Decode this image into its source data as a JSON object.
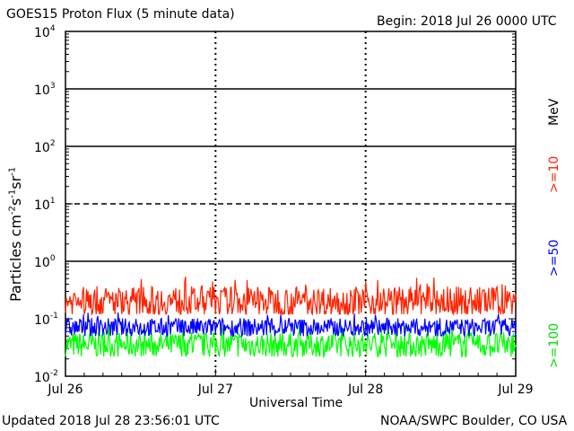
{
  "header": {
    "title": "GOES15 Proton Flux (5 minute data)",
    "begin": "Begin: 2018 Jul 26 0000 UTC"
  },
  "footer": {
    "updated": "Updated 2018 Jul 28 23:56:01 UTC",
    "source": "NOAA/SWPC Boulder, CO USA"
  },
  "energy": {
    "unit": "MeV",
    "ge10": ">=10",
    "ge50": ">=50",
    "ge100": ">=100"
  },
  "chart_data": {
    "type": "line",
    "title": "GOES15 Proton Flux (5 minute data)",
    "xlabel": "Universal Time",
    "ylabel": "Particles cm-2 s-1 sr-1",
    "yscale": "log",
    "ylim": [
      0.01,
      10000
    ],
    "xlim_days": [
      0,
      3
    ],
    "x_ticks": [
      "Jul 26",
      "Jul 27",
      "Jul 28",
      "Jul 29"
    ],
    "y_ticks": [
      "10^-2",
      "10^-1",
      "10^0",
      "10^1",
      "10^2",
      "10^3",
      "10^4"
    ],
    "threshold_levels": [
      1,
      10,
      100,
      1000
    ],
    "grid": "day separators dashed vertical lines",
    "colors": {
      "ge10": "#ff2200",
      "ge50": "#0000ff",
      "ge100": "#00ff00"
    },
    "series": [
      {
        "name": ">=10 MeV",
        "color": "#ff2200",
        "typical": 0.2,
        "low": 0.12,
        "high": 0.55
      },
      {
        "name": ">=50 MeV",
        "color": "#0000ff",
        "typical": 0.07,
        "low": 0.05,
        "high": 0.13
      },
      {
        "name": ">=100 MeV",
        "color": "#00ff00",
        "typical": 0.035,
        "low": 0.022,
        "high": 0.08
      }
    ]
  }
}
